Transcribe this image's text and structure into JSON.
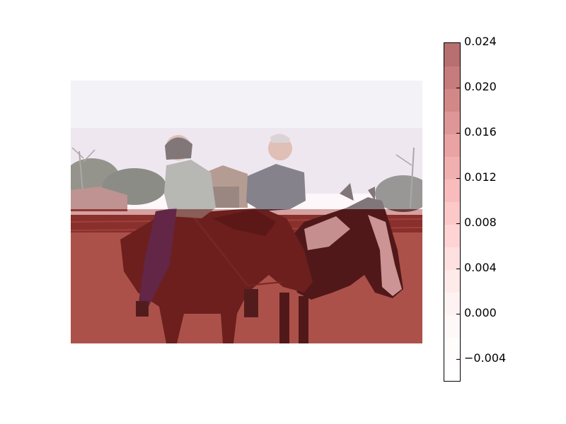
{
  "chart_data": {
    "type": "heatmap",
    "title": "",
    "xlabel": "",
    "ylabel": "",
    "background": "photograph of two people riding horses (brown horse and black-and-white horse) in a dirt arena",
    "overlay": {
      "description": "horizontal row bands overlaid on the photo",
      "rows": [
        {
          "band": "top",
          "value": 0.0
        },
        {
          "band": "upper-middle",
          "value": 0.002
        },
        {
          "band": "lower",
          "value": 0.024
        }
      ]
    },
    "colorbar": {
      "range": [
        -0.006,
        0.024
      ],
      "levels": [
        -0.006,
        -0.004,
        -0.002,
        0.0,
        0.002,
        0.004,
        0.006,
        0.008,
        0.01,
        0.012,
        0.014,
        0.016,
        0.018,
        0.02,
        0.022,
        0.024
      ],
      "colors": [
        "#ffffff",
        "#fffcfc",
        "#fff8f8",
        "#fff2f2",
        "#ffeaea",
        "#ffe0e0",
        "#ffd4d4",
        "#fdc8c8",
        "#f8bcbc",
        "#f1b0b0",
        "#e9a3a3",
        "#df9696",
        "#d38888",
        "#c67c7c",
        "#b86f6f"
      ],
      "ticks": [
        -0.004,
        0.0,
        0.004,
        0.008,
        0.012,
        0.016,
        0.02,
        0.024
      ],
      "tick_labels": [
        "−0.004",
        "0.000",
        "0.004",
        "0.008",
        "0.012",
        "0.016",
        "0.020",
        "0.024"
      ]
    }
  }
}
